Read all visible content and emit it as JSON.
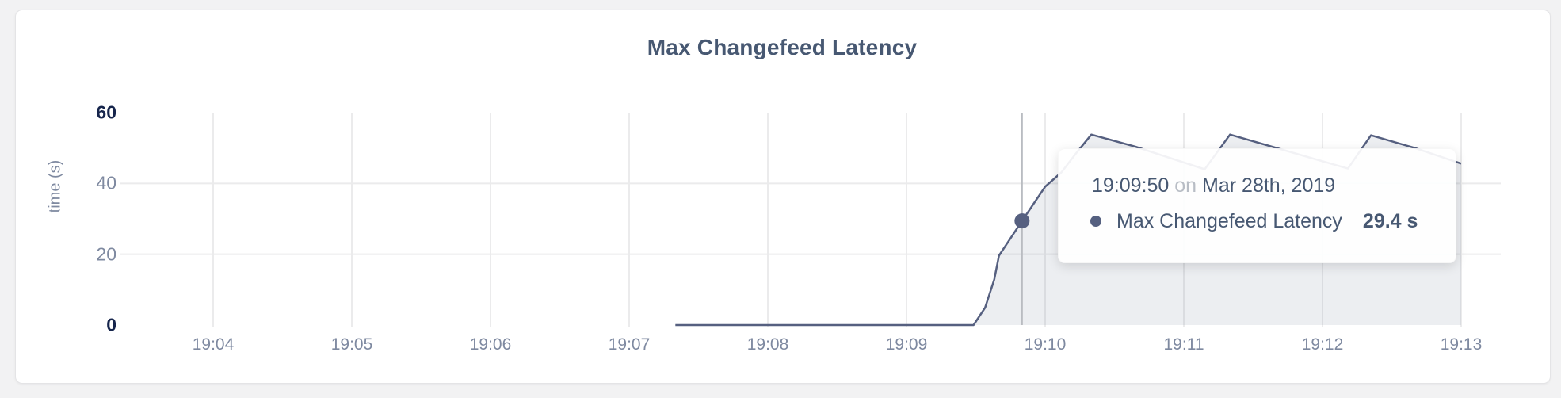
{
  "page": {
    "title": "Max Changefeed Latency"
  },
  "chart_data": {
    "type": "area",
    "title": "Max Changefeed Latency",
    "xlabel": "",
    "ylabel": "time (s)",
    "ylim": [
      0,
      60
    ],
    "y_ticks": [
      "0",
      "20",
      "40",
      "60"
    ],
    "x_ticks": [
      "19:04",
      "19:05",
      "19:06",
      "19:07",
      "19:08",
      "19:09",
      "19:10",
      "19:11",
      "19:12",
      "19:13"
    ],
    "grid": "on",
    "legend_position": "none",
    "series": [
      {
        "name": "Max Changefeed Latency",
        "unit": "s",
        "points": [
          {
            "t": "19:07:20",
            "v": 0
          },
          {
            "t": "19:09:29",
            "v": 0
          },
          {
            "t": "19:09:34",
            "v": 4.9
          },
          {
            "t": "19:09:38",
            "v": 12.9
          },
          {
            "t": "19:09:40",
            "v": 19.6
          },
          {
            "t": "19:09:50",
            "v": 29.4
          },
          {
            "t": "19:10:00",
            "v": 39.1
          },
          {
            "t": "19:10:07",
            "v": 43.1
          },
          {
            "t": "19:10:13",
            "v": 48.2
          },
          {
            "t": "19:10:20",
            "v": 53.8
          },
          {
            "t": "19:10:39",
            "v": 50.4
          },
          {
            "t": "19:11:09",
            "v": 44.0
          },
          {
            "t": "19:11:20",
            "v": 53.8
          },
          {
            "t": "19:12:11",
            "v": 44.2
          },
          {
            "t": "19:12:21",
            "v": 53.6
          },
          {
            "t": "19:12:40",
            "v": 50.0
          },
          {
            "t": "19:13:00",
            "v": 45.6
          }
        ],
        "hover_point": {
          "t": "19:09:50",
          "v": 29.4
        }
      }
    ]
  },
  "tooltip": {
    "time": "19:09:50",
    "conjunction": "on",
    "date": "Mar 28th, 2019",
    "series": "Max Changefeed Latency",
    "value": "29.4 s"
  },
  "colors": {
    "accent_text": "#475872",
    "line": "#566080",
    "area_fill": "rgba(86,96,128,0.11)",
    "gridline": "#ebebec",
    "crosshair": "#b9bcc1",
    "tick_muted": "#7e89a0",
    "tick_extreme": "#16254c"
  }
}
